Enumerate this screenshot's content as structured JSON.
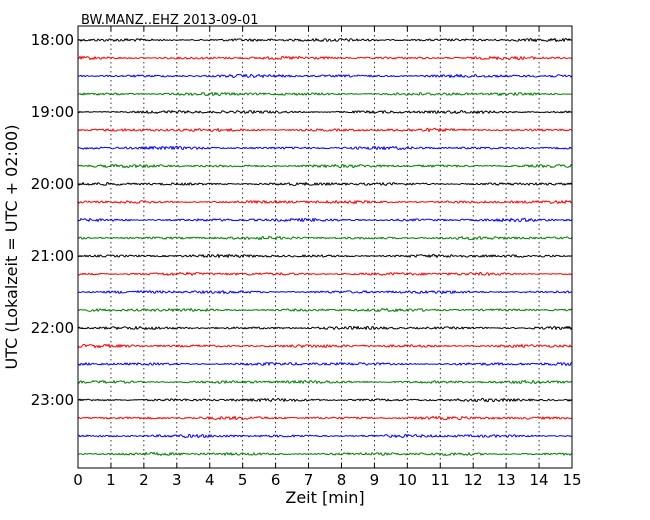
{
  "chart_data": {
    "type": "line",
    "title": "BW.MANZ..EHZ 2013-09-01",
    "xlabel": "Zeit  [min]",
    "ylabel": "UTC (Lokalzeit = UTC + 02:00)",
    "xlim": [
      0,
      15
    ],
    "x_ticks": [
      0,
      1,
      2,
      3,
      4,
      5,
      6,
      7,
      8,
      9,
      10,
      11,
      12,
      13,
      14,
      15
    ],
    "x_tick_labels": [
      "0",
      "1",
      "2",
      "3",
      "4",
      "5",
      "6",
      "7",
      "8",
      "9",
      "10",
      "11",
      "12",
      "13",
      "14",
      "15"
    ],
    "y_tick_labels": [
      "18:00",
      "19:00",
      "20:00",
      "21:00",
      "22:00",
      "23:00"
    ],
    "start_time": "18:00",
    "row_interval_min": 15,
    "row_count": 24,
    "trace_colors": [
      "#000000",
      "#ff0000",
      "#0000ff",
      "#008000"
    ],
    "grid": "vertical dotted"
  }
}
